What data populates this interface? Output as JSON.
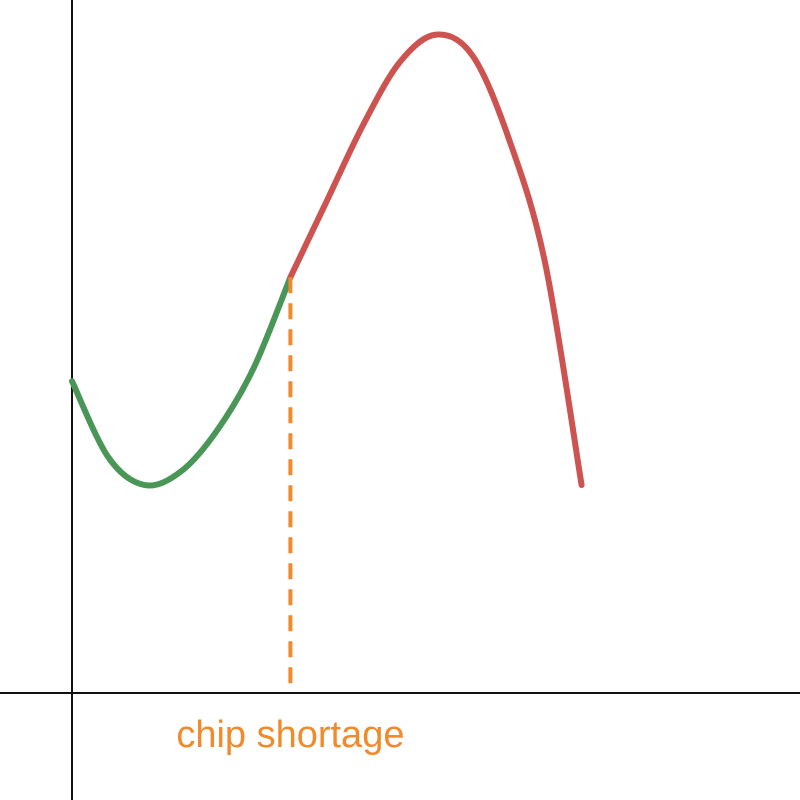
{
  "chart_data": {
    "type": "line",
    "title": "",
    "xlabel": "",
    "ylabel": "",
    "xlim": [
      0,
      10
    ],
    "ylim": [
      0,
      10
    ],
    "grid": false,
    "legend": "none",
    "series": [
      {
        "color": "#4a9657",
        "points": [
          [
            0,
            4.5
          ],
          [
            0.5,
            3.4
          ],
          [
            1,
            3.0
          ],
          [
            1.5,
            3.2
          ],
          [
            2,
            3.8
          ],
          [
            2.5,
            4.7
          ],
          [
            3,
            6.0
          ]
        ]
      },
      {
        "color": "#cc5350",
        "points": [
          [
            3,
            6.0
          ],
          [
            3.5,
            7.1
          ],
          [
            4,
            8.2
          ],
          [
            4.5,
            9.1
          ],
          [
            5,
            9.5
          ],
          [
            5.5,
            9.2
          ],
          [
            6,
            8.0
          ],
          [
            6.5,
            6.2
          ],
          [
            7,
            3.0
          ]
        ]
      }
    ],
    "annotations": [
      {
        "type": "vline",
        "x": 3,
        "y_from": 0,
        "y_to": 6.0,
        "color": "#f08a2b",
        "label": "chip shortage"
      }
    ]
  }
}
